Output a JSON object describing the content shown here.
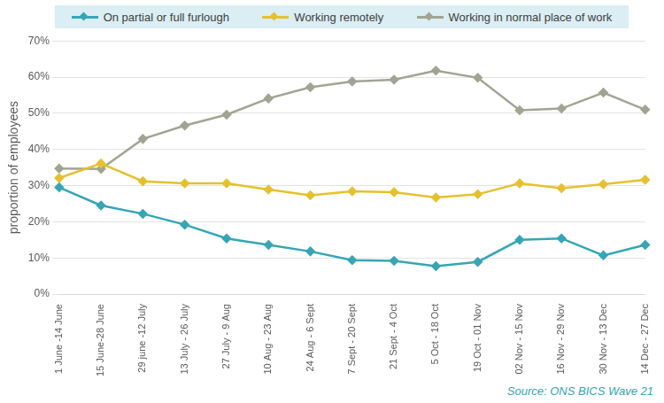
{
  "chart_data": {
    "type": "line",
    "y_label": "proportion of employees",
    "source": "Source: ONS BICS Wave 21",
    "categories": [
      "1 June -14 June",
      "15 June-28 June",
      "29 june -12 July",
      "13 July - 26 July",
      "27 July - 9 Aug",
      "10 Aug - 23 Aug",
      "24 Aug - 6 Sept",
      "7 Sept - 20 Sept",
      "21 Sept - 4 Oct",
      "5 Oct - 18 Oct",
      "19 Oct - 01 Nov",
      "02 Nov - 15 Nov",
      "16 Nov - 29 Nov",
      "30 Nov - 13 Dec",
      "14 Dec - 27 Dec"
    ],
    "series": [
      {
        "name": "On partial or full furlough",
        "color": "#36a5b5",
        "marker": "diamond",
        "values": [
          29.5,
          24.5,
          22.2,
          19.2,
          15.4,
          13.6,
          11.8,
          9.4,
          9.2,
          7.7,
          8.9,
          15.0,
          15.4,
          10.7,
          13.6
        ]
      },
      {
        "name": "Working remotely",
        "color": "#e5c12e",
        "marker": "diamond",
        "values": [
          32.1,
          36.1,
          31.2,
          30.6,
          30.6,
          28.9,
          27.3,
          28.4,
          28.2,
          26.7,
          27.6,
          30.6,
          29.3,
          30.4,
          31.6
        ]
      },
      {
        "name": "Working in normal place of work",
        "color": "#a2a493",
        "marker": "diamond",
        "values": [
          34.7,
          34.6,
          42.9,
          46.6,
          49.6,
          54.1,
          57.2,
          58.8,
          59.3,
          61.8,
          59.8,
          50.8,
          51.3,
          55.7,
          51.0
        ]
      }
    ],
    "ylim": [
      0,
      70
    ],
    "yticks": [
      {
        "value": 0,
        "label": "0%"
      },
      {
        "value": 10,
        "label": "10%"
      },
      {
        "value": 20,
        "label": "20%"
      },
      {
        "value": 30,
        "label": "30%"
      },
      {
        "value": 40,
        "label": "40%"
      },
      {
        "value": 50,
        "label": "50%"
      },
      {
        "value": 60,
        "label": "60%"
      },
      {
        "value": 70,
        "label": "70%"
      }
    ],
    "grid": true,
    "legend": "top"
  }
}
